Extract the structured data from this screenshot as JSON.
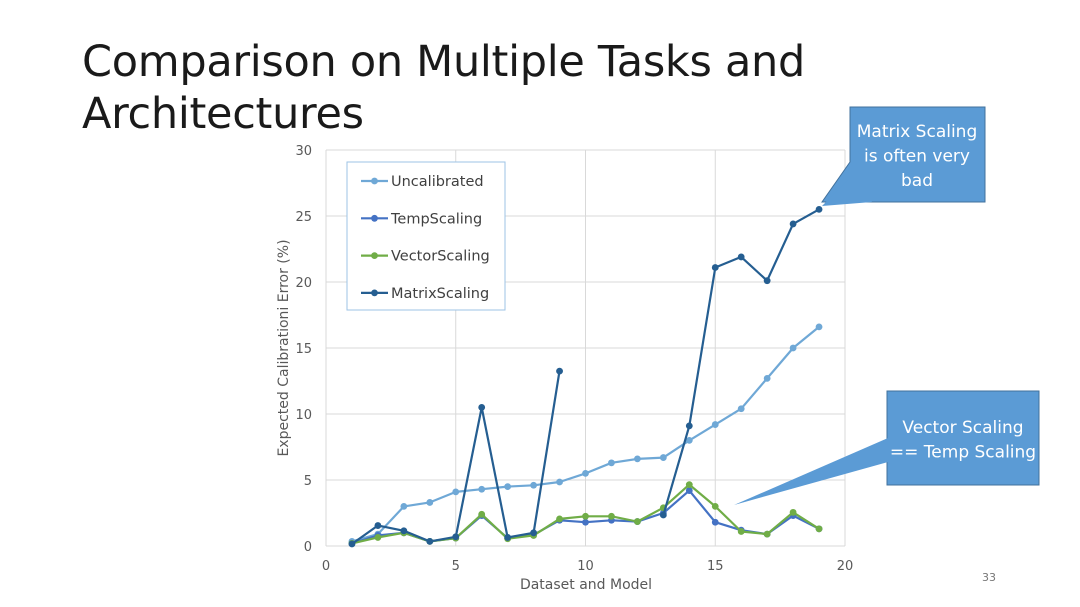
{
  "slide": {
    "title": "Comparison on Multiple Tasks and Architectures",
    "page_number": "33"
  },
  "chart_data": {
    "type": "line",
    "xlabel": "Dataset and Model",
    "ylabel": "Expected Calibrationi Error (%)",
    "xlim": [
      0,
      20
    ],
    "ylim": [
      0,
      30
    ],
    "xticks": [
      0,
      5,
      10,
      15,
      20
    ],
    "yticks": [
      0,
      5,
      10,
      15,
      20,
      25,
      30
    ],
    "grid": true,
    "legend_placement": "top-left",
    "series": [
      {
        "name": "Uncalibrated",
        "color": "#6fa8d6",
        "points": [
          [
            1,
            0.35
          ],
          [
            2,
            0.9
          ],
          [
            3,
            3.0
          ],
          [
            4,
            3.3
          ],
          [
            5,
            4.1
          ],
          [
            6,
            4.3
          ],
          [
            7,
            4.5
          ],
          [
            8,
            4.6
          ],
          [
            9,
            4.85
          ],
          [
            10,
            5.5
          ],
          [
            11,
            6.3
          ],
          [
            12,
            6.6
          ],
          [
            13,
            6.7
          ],
          [
            14,
            8.0
          ],
          [
            15,
            9.2
          ],
          [
            16,
            10.4
          ],
          [
            17,
            12.7
          ],
          [
            18,
            15.0
          ],
          [
            19,
            16.6
          ]
        ]
      },
      {
        "name": "TempScaling",
        "color": "#4472c4",
        "points": [
          [
            1,
            0.2
          ],
          [
            2,
            0.8
          ],
          [
            3,
            1.0
          ],
          [
            4,
            0.35
          ],
          [
            5,
            0.6
          ],
          [
            6,
            2.3
          ],
          [
            7,
            0.6
          ],
          [
            8,
            0.85
          ],
          [
            9,
            1.95
          ],
          [
            10,
            1.8
          ],
          [
            11,
            1.95
          ],
          [
            12,
            1.85
          ],
          [
            13,
            2.5
          ],
          [
            14,
            4.2
          ],
          [
            15,
            1.8
          ],
          [
            16,
            1.2
          ],
          [
            17,
            0.9
          ],
          [
            18,
            2.3
          ],
          [
            19,
            1.3
          ]
        ]
      },
      {
        "name": "VectorScaling",
        "color": "#70ad47",
        "points": [
          [
            1,
            0.2
          ],
          [
            2,
            0.65
          ],
          [
            3,
            1.0
          ],
          [
            4,
            0.35
          ],
          [
            5,
            0.6
          ],
          [
            6,
            2.4
          ],
          [
            7,
            0.55
          ],
          [
            8,
            0.8
          ],
          [
            9,
            2.05
          ],
          [
            10,
            2.25
          ],
          [
            11,
            2.25
          ],
          [
            12,
            1.85
          ],
          [
            13,
            2.9
          ],
          [
            14,
            4.65
          ],
          [
            15,
            3.0
          ],
          [
            16,
            1.1
          ],
          [
            17,
            0.9
          ],
          [
            18,
            2.55
          ],
          [
            19,
            1.3
          ]
        ]
      },
      {
        "name": "MatrixScaling",
        "color": "#255e91",
        "segments": [
          [
            [
              1,
              0.15
            ],
            [
              2,
              1.55
            ],
            [
              3,
              1.15
            ],
            [
              4,
              0.35
            ],
            [
              5,
              0.7
            ],
            [
              6,
              10.5
            ],
            [
              7,
              0.65
            ],
            [
              8,
              1.0
            ],
            [
              9,
              13.25
            ]
          ],
          [
            [
              13,
              2.35
            ],
            [
              14,
              9.1
            ],
            [
              15,
              21.1
            ],
            [
              16,
              21.9
            ],
            [
              17,
              20.1
            ],
            [
              18,
              24.4
            ],
            [
              19,
              25.5
            ]
          ]
        ]
      }
    ],
    "annotations": [
      {
        "text": [
          "Matrix Scaling",
          "is often very",
          "bad"
        ]
      },
      {
        "text": [
          "Vector Scaling",
          "== Temp Scaling"
        ]
      }
    ]
  },
  "colors": {
    "callout_fill": "#5b9bd5",
    "callout_border": "#41719c",
    "grid": "#d9d9d9",
    "axis_text": "#595959"
  }
}
